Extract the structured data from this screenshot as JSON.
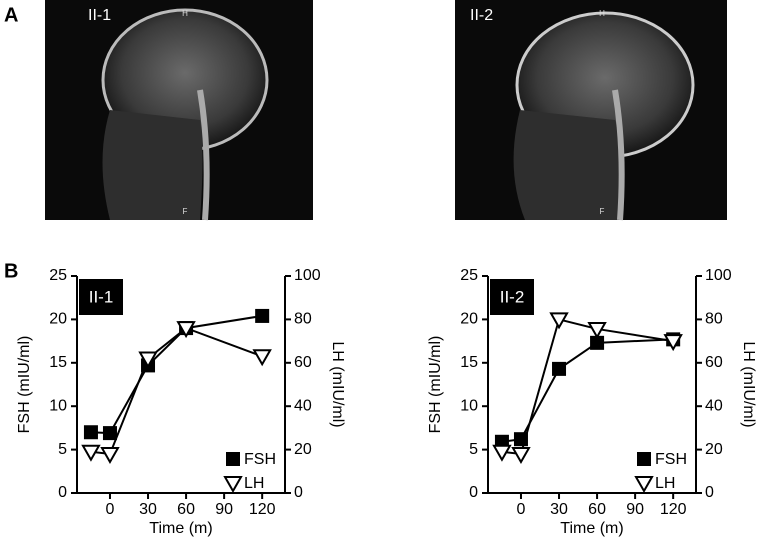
{
  "panels": {
    "a_label": "A",
    "b_label": "B"
  },
  "images": [
    {
      "label": "II-1",
      "top_mark": "H",
      "bottom_mark": "F"
    },
    {
      "label": "II-2",
      "top_mark": "H",
      "bottom_mark": "F"
    }
  ],
  "chart_data": [
    {
      "type": "line",
      "title": "II-1",
      "x_label": "Time (m)",
      "y_label": "FSH (mIU/ml)",
      "y2_label": "LH (mIU/ml)",
      "x": [
        -15,
        0,
        30,
        60,
        120
      ],
      "series": [
        {
          "name": "FSH",
          "color": "#000000",
          "marker": "square",
          "values": [
            7,
            6.9,
            14.7,
            19,
            20.4
          ]
        },
        {
          "name": "LH",
          "color": "#000000",
          "marker": "triangle-down",
          "axis": "y2",
          "values": [
            19,
            18,
            62,
            76,
            63
          ]
        }
      ],
      "xlim": [
        -26,
        138
      ],
      "xticks": [
        0,
        30,
        60,
        90,
        120
      ],
      "ylim": [
        0,
        25
      ],
      "yticks": [
        0,
        5,
        10,
        15,
        20,
        25
      ],
      "y2lim": [
        0,
        100
      ],
      "y2ticks": [
        0,
        20,
        40,
        60,
        80,
        100
      ],
      "legend": "lower right"
    },
    {
      "type": "line",
      "title": "II-2",
      "x_label": "Time (m)",
      "y_label": "FSH (mIU/ml)",
      "y2_label": "LH (mIU/ml)",
      "x": [
        -15,
        0,
        30,
        60,
        120
      ],
      "series": [
        {
          "name": "FSH",
          "color": "#000000",
          "marker": "square",
          "values": [
            5.9,
            6.2,
            14.3,
            17.3,
            17.7
          ]
        },
        {
          "name": "LH",
          "color": "#000000",
          "marker": "triangle-down",
          "axis": "y2",
          "values": [
            19,
            18,
            80,
            75.6,
            70
          ]
        }
      ],
      "xlim": [
        -26,
        138
      ],
      "xticks": [
        0,
        30,
        60,
        90,
        120
      ],
      "ylim": [
        0,
        25
      ],
      "yticks": [
        0,
        5,
        10,
        15,
        20,
        25
      ],
      "y2lim": [
        0,
        100
      ],
      "y2ticks": [
        0,
        20,
        40,
        60,
        80,
        100
      ],
      "legend": "lower right"
    }
  ]
}
